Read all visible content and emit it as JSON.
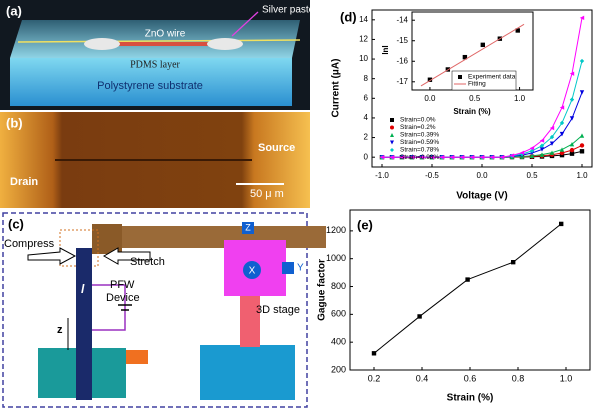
{
  "panels": {
    "a": {
      "label": "(a)",
      "wire": "ZnO wire",
      "paste": "Silver paste",
      "pdms": "PDMS layer",
      "substrate": "Polystyrene substrate"
    },
    "b": {
      "label": "(b)",
      "source": "Source",
      "drain": "Drain",
      "scale": "50 μ m"
    },
    "c": {
      "label": "(c)",
      "compress": "Compress",
      "stretch": "Stretch",
      "device": [
        "PFW",
        "Device"
      ],
      "stage": "3D stage",
      "length": "l",
      "axis": "z",
      "x": "X",
      "y": "Y",
      "z": "Z"
    }
  },
  "chart_data": [
    {
      "type": "line",
      "label": "(d)",
      "xlabel": "Voltage (V)",
      "ylabel": "Current (μA)",
      "x": [
        -1.0,
        -0.9,
        -0.8,
        -0.7,
        -0.6,
        -0.5,
        -0.4,
        -0.3,
        -0.2,
        -0.1,
        0.0,
        0.1,
        0.2,
        0.3,
        0.4,
        0.5,
        0.6,
        0.7,
        0.8,
        0.9,
        1.0
      ],
      "series": [
        {
          "name": "Strain=0.0%",
          "color": "#000000",
          "marker": "square",
          "values": [
            0,
            0,
            0,
            0,
            0,
            0,
            0,
            0,
            0,
            0,
            0,
            0,
            0,
            0.01,
            0.02,
            0.04,
            0.07,
            0.13,
            0.21,
            0.36,
            0.6
          ]
        },
        {
          "name": "Strain=0.2%",
          "color": "#e00000",
          "marker": "circle",
          "values": [
            0,
            0,
            0,
            0,
            0,
            0,
            0,
            0,
            0,
            0,
            0,
            0,
            0,
            0.01,
            0.04,
            0.08,
            0.14,
            0.25,
            0.43,
            0.72,
            1.2
          ]
        },
        {
          "name": "Strain=0.39%",
          "color": "#00b050",
          "marker": "triangle",
          "values": [
            0,
            0,
            0,
            0,
            0,
            0,
            0,
            0,
            0,
            0,
            0,
            0,
            0,
            0.03,
            0.07,
            0.14,
            0.26,
            0.46,
            0.78,
            1.32,
            2.2
          ]
        },
        {
          "name": "Strain=0.59%",
          "color": "#0000e0",
          "marker": "triangle-down",
          "values": [
            0,
            0,
            0,
            0,
            0,
            0,
            0,
            0,
            0,
            0,
            0,
            0,
            0,
            0.08,
            0.21,
            0.43,
            0.79,
            1.38,
            2.35,
            3.95,
            6.6
          ]
        },
        {
          "name": "Strain=0.78%",
          "color": "#00c8c8",
          "marker": "diamond",
          "values": [
            0,
            0,
            0,
            0,
            0,
            0,
            0,
            0,
            0,
            0,
            0,
            0,
            0,
            0.12,
            0.31,
            0.64,
            1.17,
            2.05,
            3.49,
            5.87,
            9.8
          ]
        },
        {
          "name": "Strain=0.98%",
          "color": "#ff00ff",
          "marker": "triangle-left",
          "values": [
            0,
            0,
            0,
            0,
            0,
            0,
            0,
            0,
            0,
            0,
            0,
            0,
            0,
            0.17,
            0.45,
            0.92,
            1.69,
            2.97,
            5.06,
            8.51,
            14.2
          ]
        }
      ],
      "xlim": [
        -1.1,
        1.1
      ],
      "ylim": [
        -1,
        15
      ],
      "xticks": [
        {
          "value": -1,
          "label": "-1.0"
        },
        {
          "value": -0.5,
          "label": "-0.5"
        },
        {
          "value": 0,
          "label": "0.0"
        },
        {
          "value": 0.5,
          "label": "0.5"
        },
        {
          "value": 1,
          "label": "1.0"
        }
      ],
      "yticks": [
        0,
        2,
        4,
        6,
        8,
        10,
        12,
        14
      ],
      "legend": "lower left"
    },
    {
      "type": "scatter",
      "xlabel": "Strain (%)",
      "ylabel": "lnI",
      "series": [
        {
          "name": "Experiment data",
          "color": "#000000",
          "marker": "square",
          "x": [
            0.0,
            0.2,
            0.39,
            0.59,
            0.78,
            0.98
          ],
          "values": [
            -16.9,
            -16.4,
            -15.8,
            -15.2,
            -14.9,
            -14.5
          ]
        },
        {
          "name": "Fitting",
          "color": "#e06666",
          "x": [
            -0.1,
            1.05
          ],
          "values": [
            -17.2,
            -14.2
          ]
        }
      ],
      "xlim": [
        -0.2,
        1.15
      ],
      "ylim": [
        -17.4,
        -13.6
      ],
      "xticks": [
        {
          "value": 0,
          "label": "0.0"
        },
        {
          "value": 0.5,
          "label": "0.5"
        },
        {
          "value": 1,
          "label": "1.0"
        }
      ],
      "yticks": [
        -14,
        -15,
        -16,
        -17
      ],
      "legend": "lower right"
    },
    {
      "type": "line",
      "label": "(e)",
      "xlabel": "Strain (%)",
      "ylabel": "Gague factor",
      "x": [
        0.2,
        0.39,
        0.59,
        0.78,
        0.98
      ],
      "values": [
        320,
        585,
        850,
        975,
        1250
      ],
      "color": "#000000",
      "marker": "square",
      "xlim": [
        0.1,
        1.1
      ],
      "ylim": [
        200,
        1350
      ],
      "xticks": [
        0.2,
        0.4,
        0.6,
        0.8,
        {
          "value": 1,
          "label": "1.0"
        }
      ],
      "yticks": [
        200,
        400,
        600,
        800,
        1000,
        1200
      ]
    }
  ]
}
